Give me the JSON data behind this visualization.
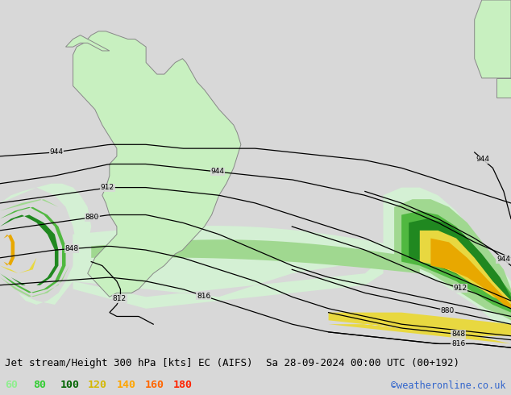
{
  "title_left": "Jet stream/Height 300 hPa [kts] EC (AIFS)",
  "title_right": "Sa 28-09-2024 00:00 UTC (00+192)",
  "credit": "©weatheronline.co.uk",
  "legend_values": [
    "60",
    "80",
    "100",
    "120",
    "140",
    "160",
    "180"
  ],
  "legend_text_colors": [
    "#90ee90",
    "#32cd32",
    "#006400",
    "#d4b800",
    "#ffa500",
    "#ff6600",
    "#ff2200"
  ],
  "bg_color": "#d8d8d8",
  "land_color": "#c8f0c0",
  "ocean_color": "#d8d8d8",
  "border_color": "#888888",
  "figsize": [
    6.34,
    4.9
  ],
  "dpi": 100,
  "map_extent": [
    -100,
    40,
    -70,
    20
  ],
  "jet_color_60": "#d4f0d4",
  "jet_color_80": "#a0d890",
  "jet_color_100": "#50b840",
  "jet_color_120": "#208820",
  "jet_color_140": "#e8d840",
  "jet_color_160": "#e8a800",
  "jet_color_180": "#e86000"
}
